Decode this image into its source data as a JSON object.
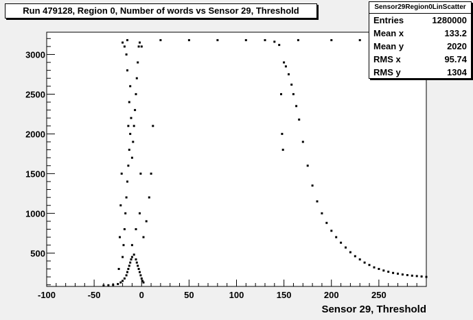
{
  "chart_data": {
    "type": "scatter",
    "title": "Run 479128, Region 0, Number of words vs Sensor 29, Threshold",
    "xlabel": "Sensor 29, Threshold",
    "ylabel": "",
    "xlim": [
      -100,
      300
    ],
    "ylim": [
      80,
      3280
    ],
    "x_ticks": [
      -100,
      -50,
      0,
      50,
      100,
      150,
      200,
      250
    ],
    "y_ticks": [
      500,
      1000,
      1500,
      2000,
      2500,
      3000
    ],
    "grid": false,
    "stats": {
      "name": "Sensor29Region0LinScatter",
      "entries_label": "Entries",
      "entries": "1280000",
      "meanx_label": "Mean x",
      "meanx": "133.2",
      "meany_label": "Mean y",
      "meany": "2020",
      "rmsx_label": "RMS x",
      "rmsx": "95.74",
      "rmsy_label": "RMS y",
      "rmsy": "1304"
    },
    "series": [
      {
        "points": [
          [
            -40,
            90
          ],
          [
            -35,
            95
          ],
          [
            -30,
            100
          ],
          [
            -25,
            110
          ],
          [
            -22,
            130
          ],
          [
            -20,
            150
          ],
          [
            -18,
            180
          ],
          [
            -16,
            220
          ],
          [
            -15,
            260
          ],
          [
            -14,
            300
          ],
          [
            -13,
            340
          ],
          [
            -12,
            380
          ],
          [
            -11,
            420
          ],
          [
            -10,
            450
          ],
          [
            -8,
            480
          ],
          [
            -6,
            420
          ],
          [
            -5,
            380
          ],
          [
            -4,
            340
          ],
          [
            -3,
            300
          ],
          [
            -2,
            260
          ],
          [
            -1,
            220
          ],
          [
            0,
            180
          ],
          [
            1,
            150
          ],
          [
            2,
            130
          ],
          [
            -20,
            450
          ],
          [
            -19,
            600
          ],
          [
            -18,
            800
          ],
          [
            -17,
            1000
          ],
          [
            -16,
            1200
          ],
          [
            -15,
            1400
          ],
          [
            -14,
            1600
          ],
          [
            -13,
            1800
          ],
          [
            -12,
            2000
          ],
          [
            -14,
            2100
          ],
          [
            -11,
            2200
          ],
          [
            -13,
            2400
          ],
          [
            -12,
            2600
          ],
          [
            -15,
            2800
          ],
          [
            -16,
            3000
          ],
          [
            -18,
            3100
          ],
          [
            -20,
            3150
          ],
          [
            -10,
            1700
          ],
          [
            -9,
            1900
          ],
          [
            -8,
            2100
          ],
          [
            -7,
            2300
          ],
          [
            -6,
            2500
          ],
          [
            -5,
            2700
          ],
          [
            -4,
            2900
          ],
          [
            -3,
            3100
          ],
          [
            -2,
            3150
          ],
          [
            -24,
            300
          ],
          [
            -23,
            700
          ],
          [
            -22,
            1100
          ],
          [
            -21,
            1500
          ],
          [
            -10,
            600
          ],
          [
            -6,
            800
          ],
          [
            -2,
            1000
          ],
          [
            2,
            700
          ],
          [
            5,
            900
          ],
          [
            8,
            1200
          ],
          [
            10,
            1500
          ],
          [
            12,
            2100
          ],
          [
            -1,
            1500
          ],
          [
            0,
            3100
          ]
        ]
      },
      {
        "points": [
          [
            140,
            3160
          ],
          [
            145,
            3120
          ],
          [
            147,
            2500
          ],
          [
            148,
            2000
          ],
          [
            149,
            1800
          ],
          [
            150,
            2900
          ],
          [
            152,
            2850
          ],
          [
            155,
            2750
          ],
          [
            158,
            2620
          ],
          [
            160,
            2500
          ],
          [
            163,
            2350
          ],
          [
            166,
            2180
          ],
          [
            170,
            1900
          ],
          [
            175,
            1600
          ],
          [
            180,
            1350
          ],
          [
            185,
            1150
          ],
          [
            190,
            1000
          ],
          [
            195,
            880
          ],
          [
            200,
            780
          ],
          [
            205,
            700
          ],
          [
            210,
            630
          ],
          [
            215,
            570
          ],
          [
            220,
            510
          ],
          [
            225,
            460
          ],
          [
            230,
            420
          ],
          [
            235,
            380
          ],
          [
            240,
            350
          ],
          [
            245,
            320
          ],
          [
            250,
            300
          ],
          [
            255,
            280
          ],
          [
            260,
            265
          ],
          [
            265,
            250
          ],
          [
            270,
            240
          ],
          [
            275,
            230
          ],
          [
            280,
            222
          ],
          [
            285,
            215
          ],
          [
            290,
            210
          ],
          [
            295,
            205
          ],
          [
            300,
            200
          ],
          [
            -15,
            3180
          ],
          [
            20,
            3180
          ],
          [
            50,
            3180
          ],
          [
            80,
            3180
          ],
          [
            110,
            3180
          ],
          [
            130,
            3180
          ],
          [
            165,
            3180
          ],
          [
            200,
            3180
          ],
          [
            230,
            3180
          ]
        ]
      }
    ]
  }
}
